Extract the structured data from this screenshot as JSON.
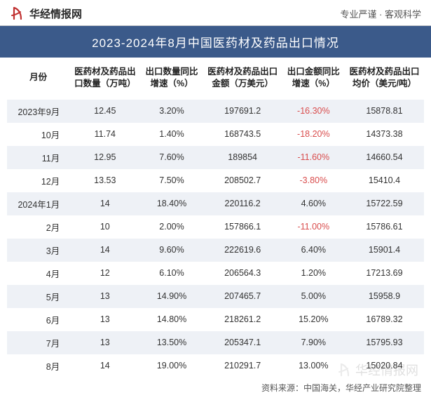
{
  "header": {
    "logo_text": "华经情报网",
    "tagline": "专业严谨 · 客观科学"
  },
  "title": "2023-2024年8月中国医药材及药品出口情况",
  "columns": [
    "月份",
    "医药材及药品出口数量（万吨）",
    "出口数量同比增速（%）",
    "医药材及药品出口金额（万美元）",
    "出口金额同比增速（%）",
    "医药材及药品出口均价（美元/吨）"
  ],
  "rows": [
    {
      "month": "2023年9月",
      "qty": "12.45",
      "qty_yoy": "3.20%",
      "amt": "197691.2",
      "amt_yoy": "-16.30%",
      "amt_neg": true,
      "price": "15878.81"
    },
    {
      "month": "10月",
      "qty": "11.74",
      "qty_yoy": "1.40%",
      "amt": "168743.5",
      "amt_yoy": "-18.20%",
      "amt_neg": true,
      "price": "14373.38"
    },
    {
      "month": "11月",
      "qty": "12.95",
      "qty_yoy": "7.60%",
      "amt": "189854",
      "amt_yoy": "-11.60%",
      "amt_neg": true,
      "price": "14660.54"
    },
    {
      "month": "12月",
      "qty": "13.53",
      "qty_yoy": "7.50%",
      "amt": "208502.7",
      "amt_yoy": "-3.80%",
      "amt_neg": true,
      "price": "15410.4"
    },
    {
      "month": "2024年1月",
      "qty": "14",
      "qty_yoy": "18.40%",
      "amt": "220116.2",
      "amt_yoy": "4.60%",
      "amt_neg": false,
      "price": "15722.59"
    },
    {
      "month": "2月",
      "qty": "10",
      "qty_yoy": "2.00%",
      "amt": "157866.1",
      "amt_yoy": "-11.00%",
      "amt_neg": true,
      "price": "15786.61"
    },
    {
      "month": "3月",
      "qty": "14",
      "qty_yoy": "9.60%",
      "amt": "222619.6",
      "amt_yoy": "6.40%",
      "amt_neg": false,
      "price": "15901.4"
    },
    {
      "month": "4月",
      "qty": "12",
      "qty_yoy": "6.10%",
      "amt": "206564.3",
      "amt_yoy": "1.20%",
      "amt_neg": false,
      "price": "17213.69"
    },
    {
      "month": "5月",
      "qty": "13",
      "qty_yoy": "14.90%",
      "amt": "207465.7",
      "amt_yoy": "5.00%",
      "amt_neg": false,
      "price": "15958.9"
    },
    {
      "month": "6月",
      "qty": "13",
      "qty_yoy": "14.80%",
      "amt": "218261.2",
      "amt_yoy": "15.20%",
      "amt_neg": false,
      "price": "16789.32"
    },
    {
      "month": "7月",
      "qty": "13",
      "qty_yoy": "13.50%",
      "amt": "205347.1",
      "amt_yoy": "7.90%",
      "amt_neg": false,
      "price": "15795.93"
    },
    {
      "month": "8月",
      "qty": "14",
      "qty_yoy": "19.00%",
      "amt": "210291.7",
      "amt_yoy": "13.00%",
      "amt_neg": false,
      "price": "15020.84"
    }
  ],
  "footer": "资料来源：中国海关，华经产业研究院整理",
  "watermark": "华经情报网",
  "colors": {
    "title_bg": "#3b5a8a",
    "row_odd": "#eef1f6",
    "neg": "#d94d4d"
  }
}
